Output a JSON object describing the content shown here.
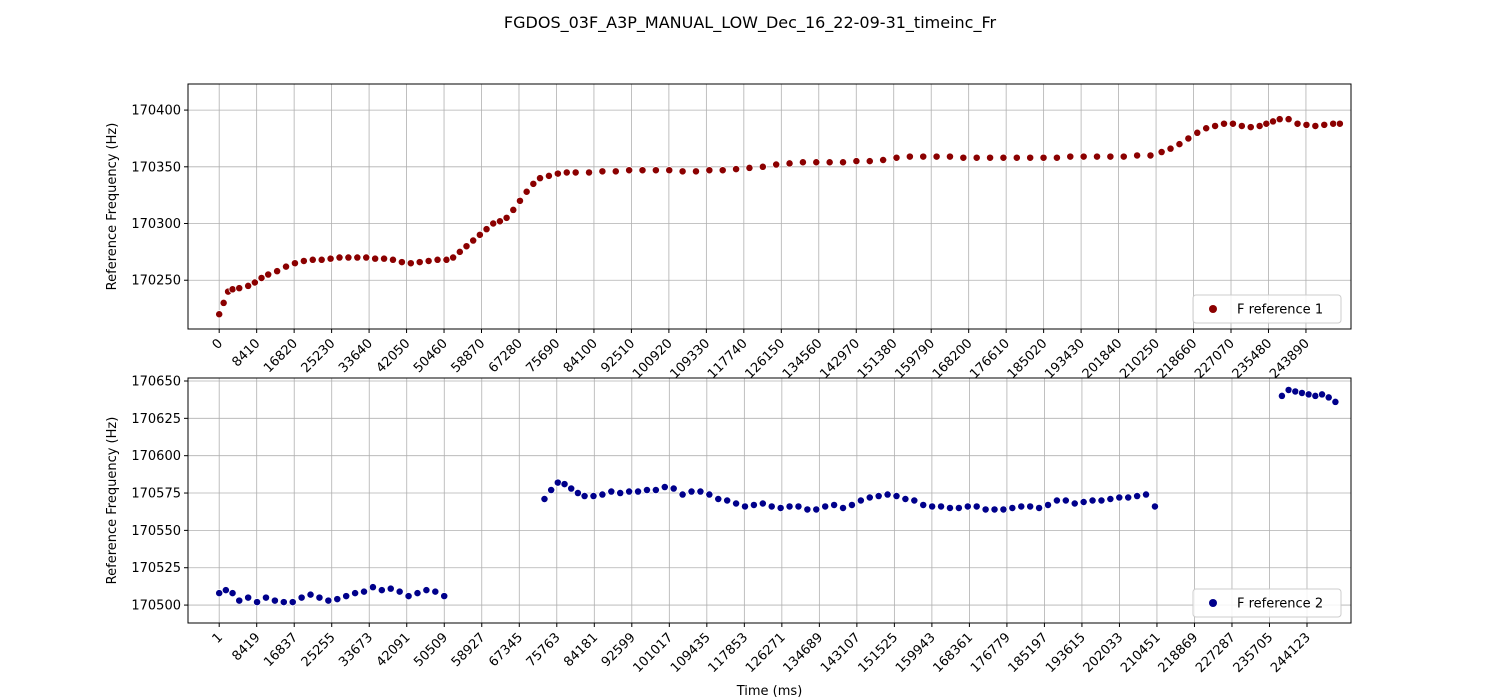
{
  "figure": {
    "title": "FGDOS_03F_A3P_MANUAL_LOW_Dec_16_22-09-31_timeinc_Fr"
  },
  "chart_data": [
    {
      "type": "scatter",
      "xlabel": "",
      "ylabel": "Reference Frequency (Hz)",
      "xlim": [
        -7000,
        254000
      ],
      "ylim": [
        170207,
        170423
      ],
      "xticks": [
        0,
        8410,
        16820,
        25230,
        33640,
        42050,
        50460,
        58870,
        67280,
        75690,
        84100,
        92510,
        100920,
        109330,
        117740,
        126150,
        134560,
        142970,
        151380,
        159790,
        168200,
        176610,
        185020,
        193430,
        201840,
        210250,
        218660,
        227070,
        235480,
        243890
      ],
      "yticks": [
        170250,
        170300,
        170350,
        170400
      ],
      "grid": true,
      "legend": {
        "placement": "lower-right",
        "entries": [
          "F reference 1"
        ]
      },
      "series": [
        {
          "name": "F reference 1",
          "color": "#8b0000",
          "x": [
            0,
            1000,
            2000,
            3000,
            4500,
            6500,
            8000,
            9500,
            11000,
            13000,
            15000,
            17000,
            19000,
            21000,
            23000,
            25000,
            27000,
            29000,
            31000,
            33000,
            35000,
            37000,
            39000,
            41000,
            43000,
            45000,
            47000,
            49000,
            51000,
            52500,
            54000,
            55500,
            57000,
            58500,
            60000,
            61500,
            63000,
            64500,
            66000,
            67500,
            69000,
            70500,
            72000,
            74000,
            76000,
            78000,
            80000,
            83000,
            86000,
            89000,
            92000,
            95000,
            98000,
            101000,
            104000,
            107000,
            110000,
            113000,
            116000,
            119000,
            122000,
            125000,
            128000,
            131000,
            134000,
            137000,
            140000,
            143000,
            146000,
            149000,
            152000,
            155000,
            158000,
            161000,
            164000,
            167000,
            170000,
            173000,
            176000,
            179000,
            182000,
            185000,
            188000,
            191000,
            194000,
            197000,
            200000,
            203000,
            206000,
            209000,
            211500,
            213500,
            215500,
            217500,
            219500,
            221500,
            223500,
            225500,
            227500,
            229500,
            231500,
            233500,
            235000,
            236500,
            238000,
            240000,
            242000,
            244000,
            246000,
            248000,
            250000,
            251500
          ],
          "y": [
            170220,
            170230,
            170240,
            170242,
            170243,
            170245,
            170248,
            170252,
            170255,
            170258,
            170262,
            170265,
            170267,
            170268,
            170268,
            170269,
            170270,
            170270,
            170270,
            170270,
            170269,
            170269,
            170268,
            170266,
            170265,
            170266,
            170267,
            170268,
            170268,
            170270,
            170275,
            170280,
            170285,
            170290,
            170295,
            170300,
            170302,
            170305,
            170312,
            170320,
            170328,
            170335,
            170340,
            170342,
            170344,
            170345,
            170345,
            170345,
            170346,
            170346,
            170347,
            170347,
            170347,
            170347,
            170346,
            170346,
            170347,
            170347,
            170348,
            170349,
            170350,
            170352,
            170353,
            170354,
            170354,
            170354,
            170354,
            170355,
            170355,
            170356,
            170358,
            170359,
            170359,
            170359,
            170359,
            170358,
            170358,
            170358,
            170358,
            170358,
            170358,
            170358,
            170358,
            170359,
            170359,
            170359,
            170359,
            170359,
            170360,
            170360,
            170363,
            170366,
            170370,
            170375,
            170380,
            170384,
            170386,
            170388,
            170388,
            170386,
            170385,
            170386,
            170388,
            170390,
            170392,
            170392,
            170388,
            170387,
            170386,
            170387,
            170388,
            170388
          ]
        }
      ]
    },
    {
      "type": "scatter",
      "xlabel": "Time (ms)",
      "ylabel": "Reference Frequency (Hz)",
      "xlim": [
        -7000,
        254000
      ],
      "ylim": [
        170488,
        170652
      ],
      "xticks": [
        1,
        8419,
        16837,
        25255,
        33673,
        42091,
        50509,
        58927,
        67345,
        75763,
        84181,
        92599,
        101017,
        109435,
        117853,
        126271,
        134689,
        143107,
        151525,
        159943,
        168361,
        176779,
        185197,
        193615,
        202033,
        210451,
        218869,
        227287,
        235705,
        244123
      ],
      "yticks": [
        170500,
        170525,
        170550,
        170575,
        170600,
        170625,
        170650
      ],
      "grid": true,
      "legend": {
        "placement": "lower-right",
        "entries": [
          "F reference 2"
        ]
      },
      "series": [
        {
          "name": "F reference 2",
          "color": "#00008b",
          "x": [
            0,
            1500,
            3000,
            4500,
            6500,
            8500,
            10500,
            12500,
            14500,
            16500,
            18500,
            20500,
            22500,
            24500,
            26500,
            28500,
            30500,
            32500,
            34500,
            36500,
            38500,
            40500,
            42500,
            44500,
            46500,
            48500,
            50500,
            73000,
            74500,
            76000,
            77500,
            79000,
            80500,
            82000,
            84000,
            86000,
            88000,
            90000,
            92000,
            94000,
            96000,
            98000,
            100000,
            102000,
            104000,
            106000,
            108000,
            110000,
            112000,
            114000,
            116000,
            118000,
            120000,
            122000,
            124000,
            126000,
            128000,
            130000,
            132000,
            134000,
            136000,
            138000,
            140000,
            142000,
            144000,
            146000,
            148000,
            150000,
            152000,
            154000,
            156000,
            158000,
            160000,
            162000,
            164000,
            166000,
            168000,
            170000,
            172000,
            174000,
            176000,
            178000,
            180000,
            182000,
            184000,
            186000,
            188000,
            190000,
            192000,
            194000,
            196000,
            198000,
            200000,
            202000,
            204000,
            206000,
            208000,
            210000,
            238500,
            240000,
            241500,
            243000,
            244500,
            246000,
            247500,
            249000,
            250500
          ],
          "y": [
            170508,
            170510,
            170508,
            170503,
            170505,
            170502,
            170505,
            170503,
            170502,
            170502,
            170505,
            170507,
            170505,
            170503,
            170504,
            170506,
            170508,
            170509,
            170512,
            170510,
            170511,
            170509,
            170506,
            170508,
            170510,
            170509,
            170506,
            170571,
            170577,
            170582,
            170581,
            170578,
            170575,
            170573,
            170573,
            170574,
            170576,
            170575,
            170576,
            170576,
            170577,
            170577,
            170579,
            170578,
            170574,
            170576,
            170576,
            170574,
            170571,
            170570,
            170568,
            170566,
            170567,
            170568,
            170566,
            170565,
            170566,
            170566,
            170564,
            170564,
            170566,
            170567,
            170565,
            170567,
            170570,
            170572,
            170573,
            170574,
            170573,
            170571,
            170570,
            170567,
            170566,
            170566,
            170565,
            170565,
            170566,
            170566,
            170564,
            170564,
            170564,
            170565,
            170566,
            170566,
            170565,
            170567,
            170570,
            170570,
            170568,
            170569,
            170570,
            170570,
            170571,
            170572,
            170572,
            170573,
            170574,
            170566,
            170640,
            170644,
            170643,
            170642,
            170641,
            170640,
            170641,
            170639,
            170636
          ]
        }
      ]
    }
  ]
}
